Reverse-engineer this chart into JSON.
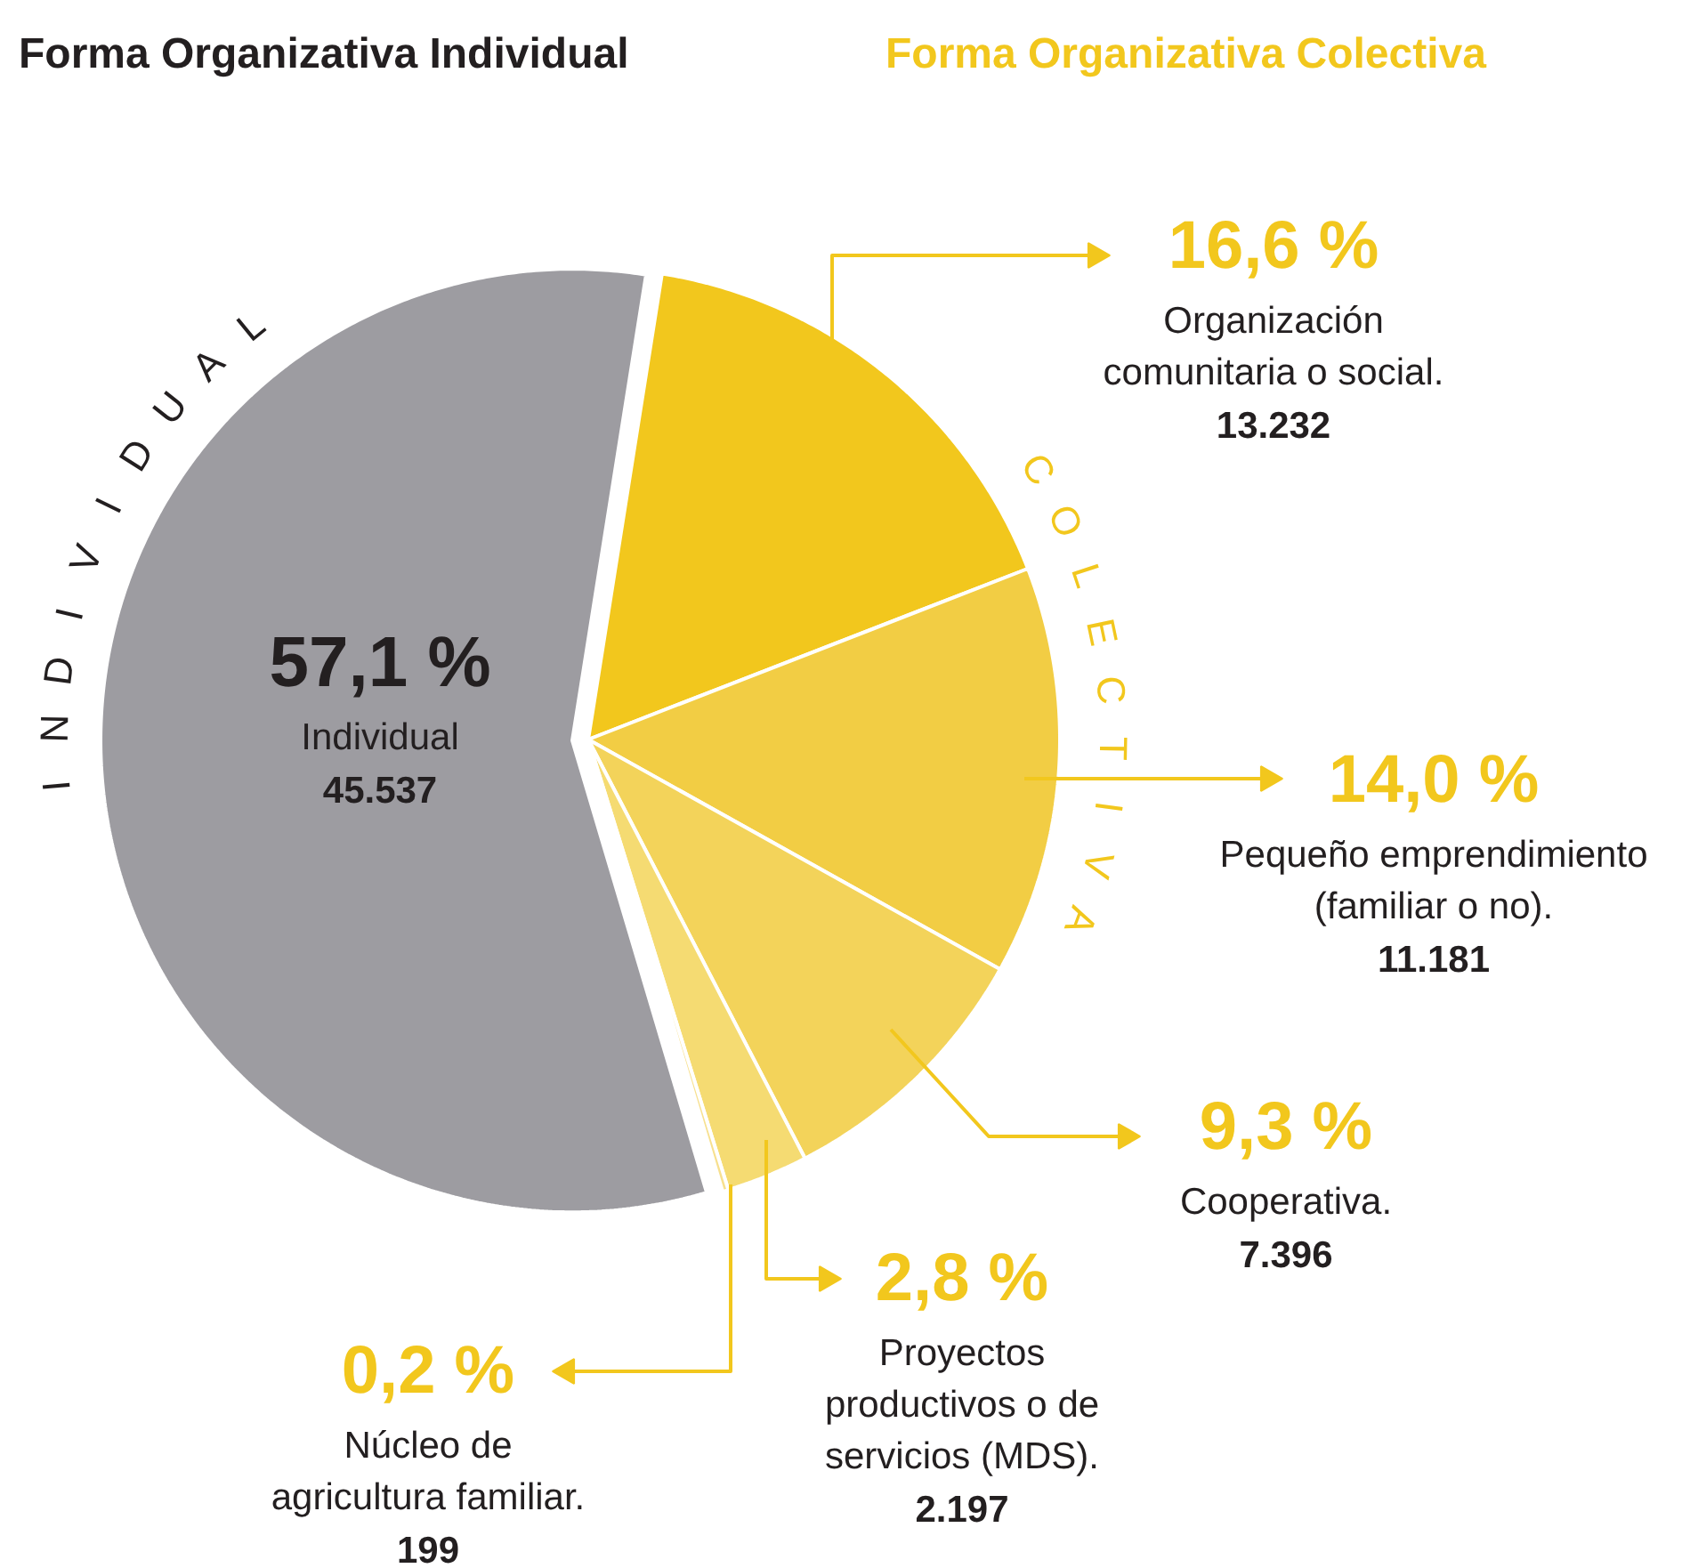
{
  "chart_data": {
    "type": "pie",
    "title": "Forma Organizativa Individual",
    "subtitle": "Forma Organizativa Colectiva",
    "categories": [
      "Organización comunitaria o social.",
      "Pequeño emprendimiento (familiar o no).",
      "Cooperativa.",
      "Proyectos productivos o de servicios (MDS).",
      "Núcleo de agricultura familiar.",
      "Individual"
    ],
    "values": [
      16.6,
      14.0,
      9.3,
      2.8,
      0.2,
      57.1
    ],
    "colors": [
      "#f2c71d",
      "#f2cd44",
      "#f3d35a",
      "#f5db72",
      "#f7e08f",
      "#9d9ca1"
    ],
    "value_labels": [
      "16,6 %",
      "14,0 %",
      "9,3 %",
      "2,8 %",
      "0,2 %",
      "57,1 %"
    ],
    "annotations": [
      "13.232",
      "11.181",
      "7.396",
      "2.197",
      "199",
      "45.537",
      "INDIVIDUAL",
      "COLECTIVA"
    ]
  }
}
